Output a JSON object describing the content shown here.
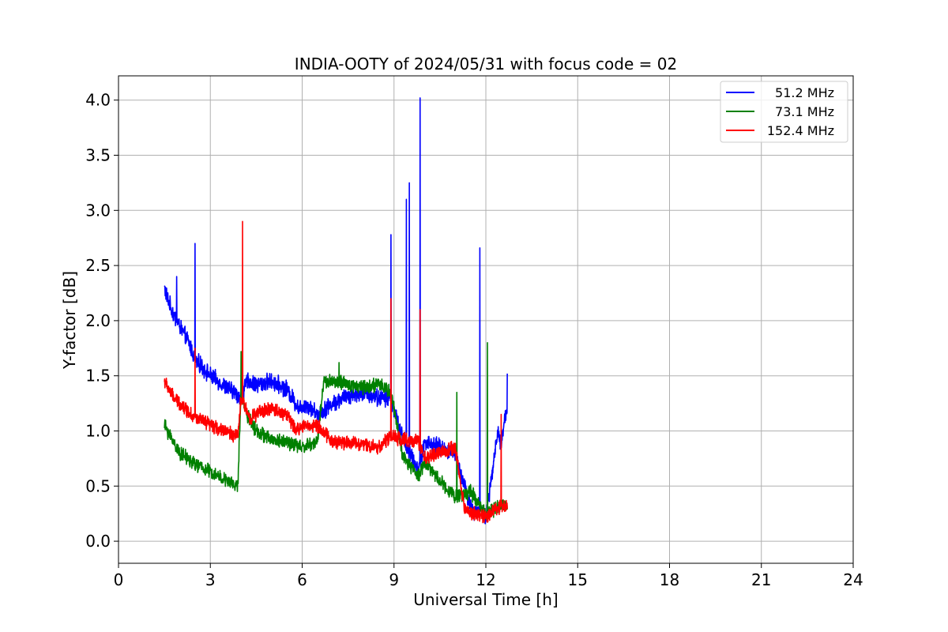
{
  "chart_data": {
    "type": "line",
    "title": "INDIA-OOTY of 2024/05/31 with focus code = 02",
    "xlabel": "Universal Time [h]",
    "ylabel": "Y-factor [dB]",
    "xlim": [
      0,
      24
    ],
    "ylim": [
      -0.2,
      4.22
    ],
    "xticks": [
      0,
      3,
      6,
      9,
      12,
      15,
      18,
      21,
      24
    ],
    "yticks": [
      0.0,
      0.5,
      1.0,
      1.5,
      2.0,
      2.5,
      3.0,
      3.5,
      4.0
    ],
    "ytick_labels": [
      "0.0",
      "0.5",
      "1.0",
      "1.5",
      "2.0",
      "2.5",
      "3.0",
      "3.5",
      "4.0"
    ],
    "grid": true,
    "legend_position": "top-right",
    "series": [
      {
        "name": "51.2 MHz",
        "color": "#0000ff",
        "noise": 0.06,
        "points": [
          [
            1.5,
            2.3
          ],
          [
            1.6,
            2.2
          ],
          [
            1.8,
            2.05
          ],
          [
            2.0,
            1.95
          ],
          [
            2.3,
            1.8
          ],
          [
            2.5,
            1.65
          ],
          [
            3.0,
            1.5
          ],
          [
            3.5,
            1.4
          ],
          [
            3.9,
            1.33
          ],
          [
            4.0,
            1.3
          ],
          [
            4.2,
            1.45
          ],
          [
            4.5,
            1.42
          ],
          [
            5.0,
            1.45
          ],
          [
            5.5,
            1.38
          ],
          [
            5.9,
            1.2
          ],
          [
            6.1,
            1.25
          ],
          [
            6.5,
            1.15
          ],
          [
            7.0,
            1.25
          ],
          [
            7.5,
            1.32
          ],
          [
            8.0,
            1.35
          ],
          [
            8.5,
            1.3
          ],
          [
            8.9,
            1.3
          ],
          [
            9.2,
            1.0
          ],
          [
            9.5,
            0.8
          ],
          [
            9.8,
            0.65
          ],
          [
            10.0,
            0.9
          ],
          [
            10.5,
            0.85
          ],
          [
            11.0,
            0.8
          ],
          [
            11.3,
            0.5
          ],
          [
            11.6,
            0.25
          ],
          [
            11.8,
            0.3
          ],
          [
            12.0,
            0.2
          ],
          [
            12.2,
            0.6
          ],
          [
            12.4,
            1.0
          ],
          [
            12.5,
            0.85
          ],
          [
            12.6,
            1.1
          ],
          [
            12.7,
            1.2
          ]
        ],
        "spikes": [
          [
            1.9,
            2.4
          ],
          [
            2.5,
            2.7
          ],
          [
            8.9,
            2.78
          ],
          [
            9.4,
            3.1
          ],
          [
            9.5,
            3.25
          ],
          [
            9.85,
            4.02
          ],
          [
            11.8,
            2.66
          ],
          [
            12.7,
            1.52
          ]
        ]
      },
      {
        "name": "73.1 MHz",
        "color": "#008000",
        "noise": 0.05,
        "points": [
          [
            1.5,
            1.05
          ],
          [
            1.8,
            0.9
          ],
          [
            2.0,
            0.8
          ],
          [
            2.5,
            0.7
          ],
          [
            3.0,
            0.63
          ],
          [
            3.5,
            0.55
          ],
          [
            3.9,
            0.5
          ],
          [
            4.0,
            1.35
          ],
          [
            4.2,
            1.15
          ],
          [
            4.5,
            1.0
          ],
          [
            5.0,
            0.92
          ],
          [
            5.5,
            0.9
          ],
          [
            6.0,
            0.85
          ],
          [
            6.5,
            0.9
          ],
          [
            6.7,
            1.45
          ],
          [
            7.0,
            1.45
          ],
          [
            7.5,
            1.42
          ],
          [
            8.0,
            1.4
          ],
          [
            8.5,
            1.42
          ],
          [
            8.9,
            1.35
          ],
          [
            9.3,
            0.75
          ],
          [
            9.8,
            0.6
          ],
          [
            10.0,
            0.72
          ],
          [
            10.5,
            0.55
          ],
          [
            11.0,
            0.4
          ],
          [
            11.5,
            0.45
          ],
          [
            12.0,
            0.25
          ],
          [
            12.4,
            0.3
          ],
          [
            12.7,
            0.35
          ]
        ],
        "spikes": [
          [
            4.0,
            1.72
          ],
          [
            7.2,
            1.62
          ],
          [
            11.05,
            1.35
          ],
          [
            12.05,
            1.8
          ]
        ]
      },
      {
        "name": "152.4 MHz",
        "color": "#ff0000",
        "noise": 0.05,
        "points": [
          [
            1.5,
            1.45
          ],
          [
            1.8,
            1.3
          ],
          [
            2.0,
            1.25
          ],
          [
            2.5,
            1.12
          ],
          [
            3.0,
            1.05
          ],
          [
            3.5,
            1.0
          ],
          [
            3.9,
            0.95
          ],
          [
            4.0,
            1.3
          ],
          [
            4.3,
            1.12
          ],
          [
            4.7,
            1.18
          ],
          [
            5.0,
            1.2
          ],
          [
            5.5,
            1.15
          ],
          [
            5.8,
            1.0
          ],
          [
            6.0,
            1.05
          ],
          [
            6.5,
            1.05
          ],
          [
            7.0,
            0.9
          ],
          [
            7.5,
            0.9
          ],
          [
            8.0,
            0.88
          ],
          [
            8.5,
            0.85
          ],
          [
            8.9,
            0.95
          ],
          [
            9.3,
            0.92
          ],
          [
            9.8,
            0.9
          ],
          [
            10.0,
            0.75
          ],
          [
            10.5,
            0.8
          ],
          [
            11.0,
            0.85
          ],
          [
            11.3,
            0.3
          ],
          [
            11.6,
            0.25
          ],
          [
            12.0,
            0.22
          ],
          [
            12.3,
            0.3
          ],
          [
            12.7,
            0.32
          ]
        ],
        "spikes": [
          [
            2.5,
            1.75
          ],
          [
            4.05,
            2.9
          ],
          [
            8.9,
            2.2
          ],
          [
            9.85,
            2.1
          ],
          [
            12.5,
            1.15
          ]
        ]
      }
    ]
  }
}
